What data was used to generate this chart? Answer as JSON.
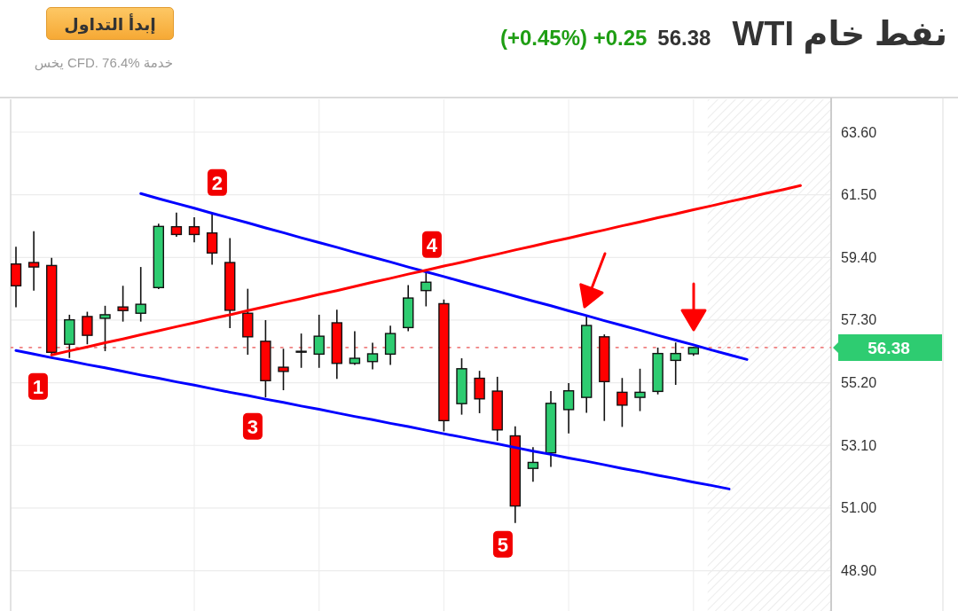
{
  "chart_data": {
    "type": "candlestick",
    "title": "نفط خام WTI",
    "subtitle": "56.38",
    "categories": [
      null,
      null,
      null,
      null,
      null,
      null,
      null,
      null,
      null,
      null,
      null,
      null,
      null,
      null,
      null,
      null,
      null,
      null,
      null,
      null,
      null,
      null,
      null,
      null,
      null,
      null,
      null,
      null,
      null,
      null,
      null,
      null,
      null,
      null,
      null,
      null,
      null,
      null,
      null,
      null,
      null,
      null,
      null,
      null,
      null,
      null
    ],
    "ohlc": [
      [
        59.18,
        59.76,
        57.73,
        58.45
      ],
      [
        59.23,
        60.28,
        58.29,
        59.08
      ],
      [
        59.13,
        59.39,
        56.14,
        56.22
      ],
      [
        56.49,
        57.48,
        56.03,
        57.31
      ],
      [
        57.42,
        57.58,
        56.49,
        56.79
      ],
      [
        57.36,
        57.78,
        56.26,
        57.48
      ],
      [
        57.74,
        58.45,
        57.25,
        57.62
      ],
      [
        57.53,
        59.08,
        57.25,
        57.83
      ],
      [
        58.39,
        60.53,
        58.34,
        60.44
      ],
      [
        60.43,
        60.9,
        60.09,
        60.17
      ],
      [
        60.43,
        60.75,
        59.91,
        60.17
      ],
      [
        60.22,
        60.85,
        59.16,
        59.55
      ],
      [
        59.23,
        60.05,
        57.03,
        57.63
      ],
      [
        57.53,
        58.35,
        56.14,
        56.74
      ],
      [
        56.59,
        57.3,
        54.71,
        55.27
      ],
      [
        55.72,
        56.34,
        54.95,
        55.58
      ],
      [
        56.24,
        56.85,
        55.7,
        56.24
      ],
      [
        56.16,
        57.48,
        55.7,
        56.76
      ],
      [
        57.21,
        57.65,
        55.33,
        55.85
      ],
      [
        55.85,
        56.93,
        55.8,
        56.02
      ],
      [
        55.91,
        56.54,
        55.65,
        56.17
      ],
      [
        56.16,
        57.11,
        55.8,
        56.85
      ],
      [
        57.05,
        58.47,
        56.93,
        58.04
      ],
      [
        58.29,
        58.91,
        57.76,
        58.57
      ],
      [
        57.85,
        57.99,
        53.57,
        53.93
      ],
      [
        54.5,
        56.02,
        54.13,
        55.67
      ],
      [
        55.35,
        55.6,
        54.18,
        54.66
      ],
      [
        54.92,
        55.4,
        53.25,
        53.62
      ],
      [
        53.42,
        53.74,
        50.5,
        51.07
      ],
      [
        52.33,
        53.04,
        51.88,
        52.53
      ],
      [
        52.85,
        54.92,
        52.38,
        54.51
      ],
      [
        54.3,
        55.19,
        53.5,
        54.93
      ],
      [
        54.71,
        57.46,
        54.19,
        57.12
      ],
      [
        56.74,
        56.82,
        53.92,
        55.24
      ],
      [
        54.88,
        55.36,
        53.72,
        54.45
      ],
      [
        54.71,
        55.67,
        54.25,
        54.88
      ],
      [
        54.91,
        56.38,
        54.81,
        56.18
      ],
      [
        55.95,
        56.55,
        55.13,
        56.18
      ],
      [
        56.17,
        56.4,
        56.1,
        56.38
      ],
      null,
      null,
      null,
      null,
      null,
      null,
      null
    ],
    "colors": [
      "#ff0000",
      "#ff0000",
      "#ff0000",
      "#2ecc71",
      "#ff0000",
      "#2ecc71",
      "#ff0000",
      "#2ecc71",
      "#2ecc71",
      "#ff0000",
      "#ff0000",
      "#ff0000",
      "#ff0000",
      "#ff0000",
      "#ff0000",
      "#ff0000",
      "#000000",
      "#2ecc71",
      "#ff0000",
      "#2ecc71",
      "#2ecc71",
      "#2ecc71",
      "#2ecc71",
      "#2ecc71",
      "#ff0000",
      "#2ecc71",
      "#ff0000",
      "#ff0000",
      "#ff0000",
      "#2ecc71",
      "#2ecc71",
      "#2ecc71",
      "#2ecc71",
      "#ff0000",
      "#ff0000",
      "#2ecc71",
      "#2ecc71",
      "#2ecc71",
      "#2ecc71",
      null,
      null,
      null,
      null,
      null,
      null,
      null
    ],
    "series": [
      {
        "type": "line",
        "color": "#0000ff",
        "values": [
          null,
          null,
          null,
          null,
          null,
          null,
          null,
          61.54,
          61.37,
          61.21,
          61.05,
          60.88,
          60.72,
          60.56,
          60.39,
          60.23,
          60.06,
          59.9,
          59.74,
          59.57,
          59.41,
          59.25,
          59.08,
          58.92,
          58.76,
          58.59,
          58.43,
          58.27,
          58.1,
          57.94,
          57.78,
          57.61,
          57.45,
          57.28,
          57.12,
          56.96,
          56.79,
          56.63,
          56.47,
          56.3,
          56.14,
          55.98,
          null,
          null,
          null,
          null
        ]
      },
      {
        "type": "line",
        "color": "#0000ff",
        "values": [
          56.28,
          56.16,
          56.04,
          55.93,
          55.81,
          55.7,
          55.58,
          55.46,
          55.35,
          55.23,
          55.12,
          55.0,
          54.88,
          54.77,
          54.65,
          54.54,
          54.42,
          54.31,
          54.19,
          54.07,
          53.96,
          53.84,
          53.73,
          53.61,
          53.49,
          53.38,
          53.26,
          53.15,
          53.03,
          52.91,
          52.8,
          52.68,
          52.57,
          52.45,
          52.33,
          52.22,
          52.1,
          51.99,
          51.87,
          51.76,
          51.64,
          null,
          null,
          null,
          null,
          null
        ]
      },
      {
        "type": "line",
        "color": "#ff0000",
        "values": [
          null,
          null,
          56.13,
          56.27,
          56.4,
          56.54,
          56.67,
          56.81,
          56.94,
          57.08,
          57.21,
          57.35,
          57.48,
          57.62,
          57.75,
          57.89,
          58.02,
          58.16,
          58.29,
          58.43,
          58.57,
          58.7,
          58.84,
          58.97,
          59.11,
          59.24,
          59.38,
          59.51,
          59.65,
          59.78,
          59.92,
          60.05,
          60.19,
          60.32,
          60.46,
          60.59,
          60.73,
          60.86,
          61.0,
          61.13,
          61.27,
          61.4,
          61.54,
          61.67,
          61.81,
          null
        ]
      }
    ],
    "ylim": [
      47.55,
      64.7
    ],
    "yticks": [
      {
        "value": 48.9,
        "label": "48.90"
      },
      {
        "value": 51.0,
        "label": "51.00"
      },
      {
        "value": 53.1,
        "label": "53.10"
      },
      {
        "value": 55.2,
        "label": "55.20"
      },
      {
        "value": 57.3,
        "label": "57.30"
      },
      {
        "value": 59.4,
        "label": "59.40"
      },
      {
        "value": 61.5,
        "label": "61.50"
      },
      {
        "value": 63.6,
        "label": "63.60"
      }
    ],
    "grid": true,
    "tick_labels": "y",
    "ref_lines": [
      {
        "axis": "y",
        "value": 56.38,
        "label": "56.38",
        "color": "#f08080",
        "line_style": "dotted"
      }
    ],
    "annotations": [
      "إبدأ التداول",
      "خدمة CFD. 76.4% يخس",
      "(+0.45%) +0.25",
      {
        "text": "1",
        "y": 55.08
      },
      {
        "text": "2",
        "y": 61.91
      },
      {
        "text": "3",
        "y": 53.74
      },
      {
        "text": "4",
        "y": 59.83
      },
      {
        "text": "5",
        "y": 49.79
      }
    ]
  }
}
